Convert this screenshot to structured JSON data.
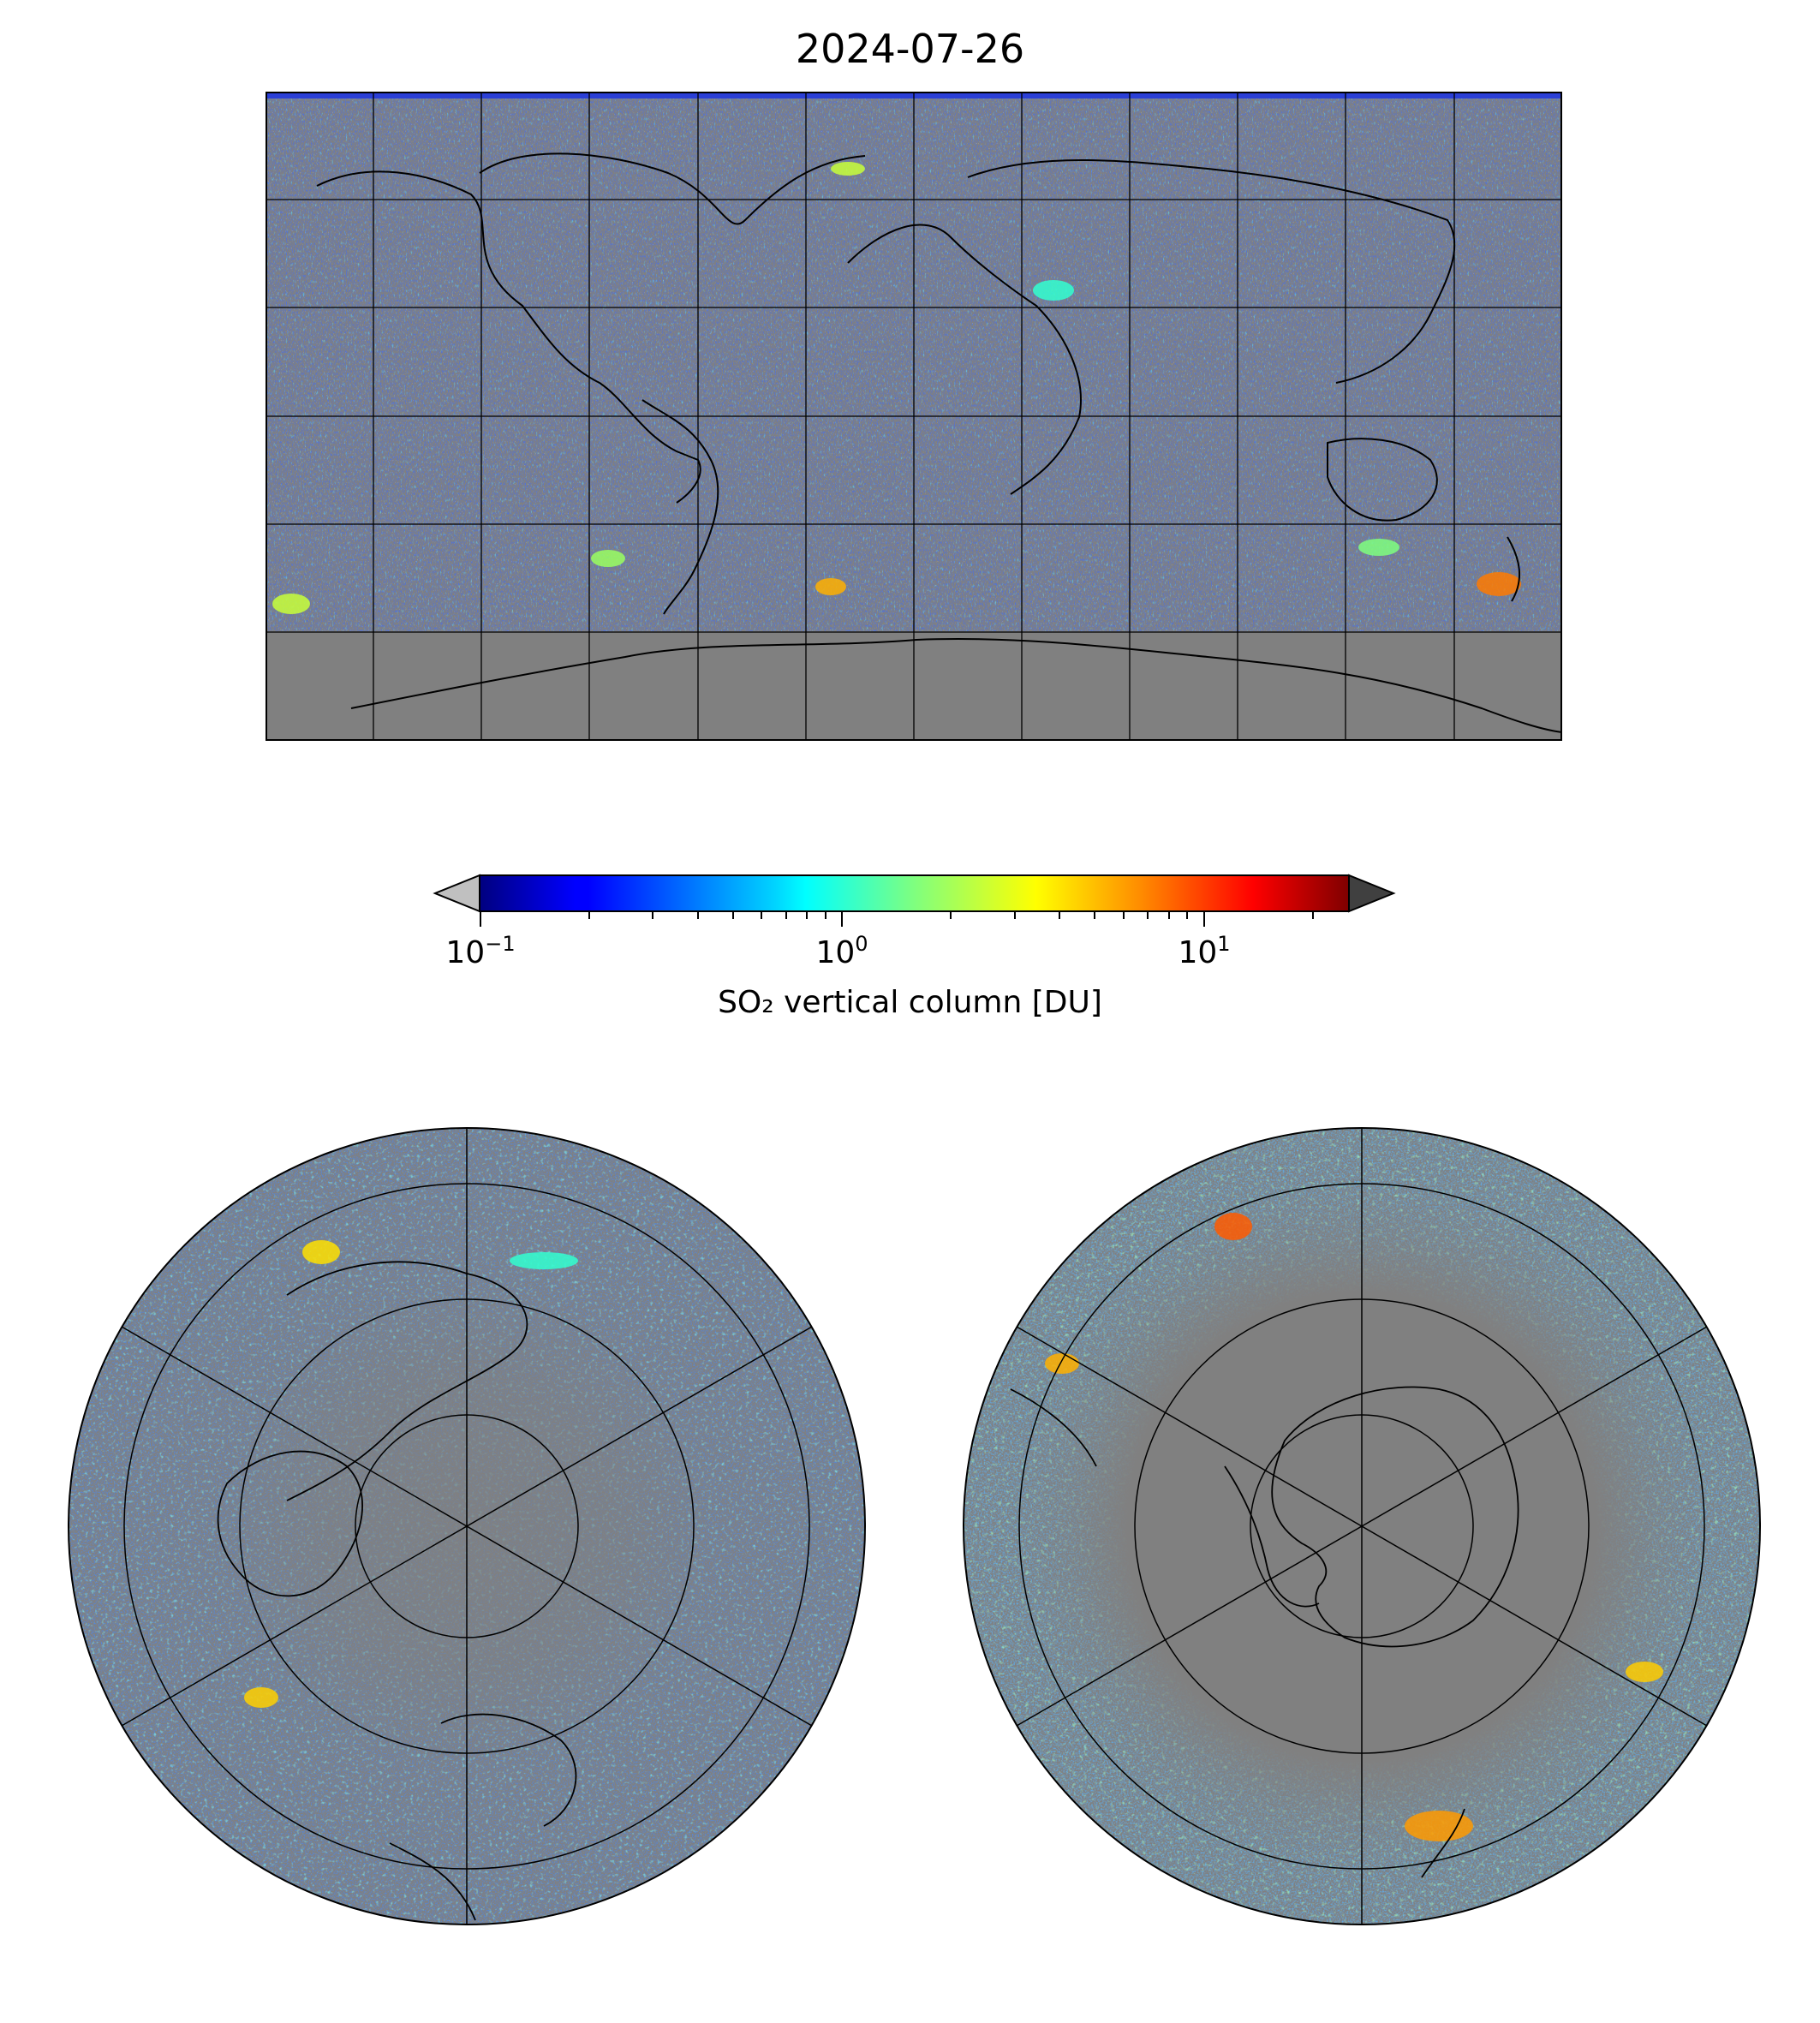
{
  "title": "2024-07-26",
  "colorbar": {
    "label": "SO₂ vertical column [DU]",
    "scale": "log",
    "range": [
      0.1,
      25
    ],
    "cmap": "jet",
    "under_color": "#c0c0c0",
    "over_color": "#404040",
    "ticks": [
      {
        "base": "10",
        "exp": "−1",
        "value": 0.1
      },
      {
        "base": "10",
        "exp": "0",
        "value": 1
      },
      {
        "base": "10",
        "exp": "1",
        "value": 10
      }
    ]
  },
  "maps": [
    {
      "name": "global",
      "projection": "plate-carree",
      "background": "#808080",
      "gridlines": true
    },
    {
      "name": "north-polar",
      "projection": "north-polar-stereographic",
      "background": "#808080",
      "gridlines": true
    },
    {
      "name": "south-polar",
      "projection": "south-polar-stereographic",
      "background": "#808080",
      "gridlines": true
    }
  ]
}
